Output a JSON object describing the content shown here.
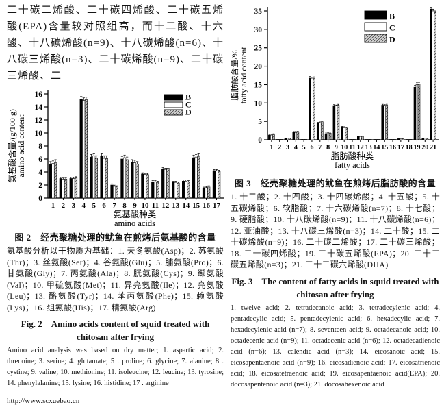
{
  "page": {
    "intro_text": "二十碳二烯酸、二十碳四烯酸、二十碳五烯酸(EPA)含量较对照组高，而十二酸、十六酸、十八碳烯酸(n=9)、十八碳烯酸(n=6)、十八碳三烯酸(n=3)、二十碳烯酸(n=9)、二十碳三烯酸、二",
    "footer_url": "http://www.scxuebao.cn"
  },
  "figure2": {
    "caption_zh": "图 2　经壳聚糖处理的鱿鱼在煎烤后氨基酸的含量",
    "notes_zh": "氨基酸分析以干物质为基础：1. 天冬氨酸(Asp)；2. 苏氨酸(Thr)；3. 丝氨酸(Ser)；4. 谷氨酸(Glu)；5. 脯氨酸(Pro)；6. 甘氨酸(Gly)；7. 丙氨酸(Ala)；8. 胱氨酸(Cys)；9. 缬氨酸(Val)；10. 甲硫氨酸(Met)；11. 异亮氨酸(Ile)；12. 亮氨酸(Leu)；13. 酪氨酸(Tyr)；14. 苯丙氨酸(Phe)；15. 赖氨酸(Lys)；16. 组氨酸(His)；17. 精氨酸(Arg)",
    "caption_en_line1": "Fig. 2　Amino acids content of squid treated with",
    "caption_en_line2": "chitosan after frying",
    "notes_en": "Amino acid analysis was based on dry matter; 1. aspartic acid; 2. threonine; 3. serine; 4. glutamate; 5 . proline; 6. glycine; 7. alanine; 8 . cystine; 9. valine; 10. methionine; 11. isoleucine; 12. leucine; 13. tyrosine; 14. phenylalanine; 15. lysine; 16. histidine; 17 . arginine"
  },
  "figure3": {
    "caption_zh": "图 3　经壳聚糖处理的鱿鱼在煎烤后脂肪酸的含量",
    "notes_zh": "1. 十二酸；2. 十四酸；3. 十四碳烯酸；4. 十五酸；5. 十五碳烯酸；6. 软脂酸；7. 十六碳烯酸(n=7)；8. 十七酸；9. 硬脂酸；10. 十八碳烯酸(n=9)；11. 十八碳烯酸(n=6)；12. 亚油酸；13. 十八碳三烯酸(n=3)；14. 二十酸；15. 二十碳烯酸(n=9)；16. 二十碳二烯酸；17. 二十碳三烯酸；18. 二十碳四烯酸；19. 二十碳五烯酸(EPA)；20. 二十二碳五烯酸(n=3)；21. 二十二碳六烯酸(DHA)",
    "caption_en_line1": "Fig. 3　The content of fatty acids in squid treated with",
    "caption_en_line2": "chitosan after frying",
    "notes_en": "1. twelve acid; 2. tetradecanoic acid; 3. tetradecylenic acid; 4. pentadecylic acid; 5. pentadecylenic acid; 6. hexadecylic acid; 7. hexadecylenic acid (n=7); 8. seventeen acid; 9. octadecanoic acid; 10. octadecenic acid (n=9); 11. octadecenic acid (n=6); 12. octadecadienoic acid (n=6); 13. calendic acid (n=3); 14. eicosanoic acid; 15. eicosapentaenoic acid (n=9); 16. eicosadienoic acid; 17. eicosatrienoic acid; 18. eicosatetraenoic acid; 19. eicosapentaenoic acid(EPA); 20. docosapentenoic acid (n=3); 21. docosahexenoic acid"
  },
  "chart_data": [
    {
      "type": "bar",
      "title": "",
      "categories": [
        "1",
        "2",
        "3",
        "4",
        "5",
        "6",
        "7",
        "8",
        "9",
        "10",
        "11",
        "12",
        "13",
        "14",
        "15",
        "16",
        "17"
      ],
      "series": [
        {
          "name": "B",
          "fill": "#000000",
          "values": [
            5.2,
            3.0,
            3.0,
            15.2,
            6.3,
            6.5,
            2.0,
            6.0,
            5.5,
            3.7,
            2.5,
            4.5,
            2.4,
            2.6,
            6.2,
            1.5,
            4.2
          ]
        },
        {
          "name": "C",
          "fill": "#ffffff",
          "values": [
            5.3,
            2.9,
            3.0,
            15.0,
            6.5,
            6.1,
            1.8,
            6.2,
            5.4,
            3.6,
            2.5,
            4.4,
            2.4,
            2.6,
            6.3,
            1.6,
            4.2
          ]
        },
        {
          "name": "D",
          "fill": "hatch",
          "values": [
            5.5,
            2.9,
            3.1,
            15.1,
            6.1,
            6.1,
            1.7,
            5.9,
            5.2,
            3.6,
            2.4,
            4.6,
            2.3,
            2.5,
            6.5,
            1.7,
            4.1
          ]
        }
      ],
      "ylabel_zh": "氨基酸含量/(g/100 g)",
      "ylabel_en": "amino acid content",
      "xlabel_zh": "氨基酸种类",
      "xlabel_en": "amino acids",
      "ylim": [
        0,
        16
      ],
      "ytick_step": 2,
      "grid": false,
      "legend": [
        "B",
        "C",
        "D"
      ],
      "legend_position": "top-right",
      "error_bars": true
    },
    {
      "type": "bar",
      "title": "",
      "categories": [
        "1",
        "2",
        "3",
        "4",
        "5",
        "6",
        "7",
        "8",
        "9",
        "10",
        "11",
        "12",
        "13",
        "14",
        "15",
        "16",
        "17",
        "18",
        "19",
        "20",
        "21"
      ],
      "series": [
        {
          "name": "B",
          "fill": "#000000",
          "values": [
            1.3,
            0.1,
            0.4,
            2.0,
            0.1,
            16.7,
            4.5,
            1.6,
            9.3,
            3.4,
            0.1,
            0.9,
            0.1,
            0.1,
            9.4,
            0.1,
            0.3,
            0.1,
            14.3,
            0.4,
            35.5
          ]
        },
        {
          "name": "C",
          "fill": "#ffffff",
          "values": [
            1.3,
            0.1,
            0.4,
            2.0,
            0.1,
            16.5,
            4.6,
            1.7,
            9.2,
            3.3,
            0.1,
            0.9,
            0.1,
            0.1,
            9.3,
            0.1,
            0.3,
            0.1,
            15.0,
            0.4,
            35.0
          ]
        },
        {
          "name": "D",
          "fill": "hatch",
          "values": [
            1.4,
            0.1,
            0.5,
            2.1,
            0.1,
            16.6,
            4.9,
            1.8,
            9.4,
            3.2,
            0.1,
            0.9,
            0.1,
            0.1,
            9.4,
            0.1,
            0.3,
            0.1,
            15.1,
            0.4,
            34.5
          ]
        }
      ],
      "ylabel_zh": "脂肪酸含量/%",
      "ylabel_en": "fatty acid content",
      "xlabel_zh": "脂肪酸种类",
      "xlabel_en": "fatty acids",
      "ylim": [
        0,
        35
      ],
      "ytick_step": 5,
      "grid": false,
      "legend": [
        "B",
        "C",
        "D"
      ],
      "legend_position": "top-right",
      "error_bars": true
    }
  ]
}
